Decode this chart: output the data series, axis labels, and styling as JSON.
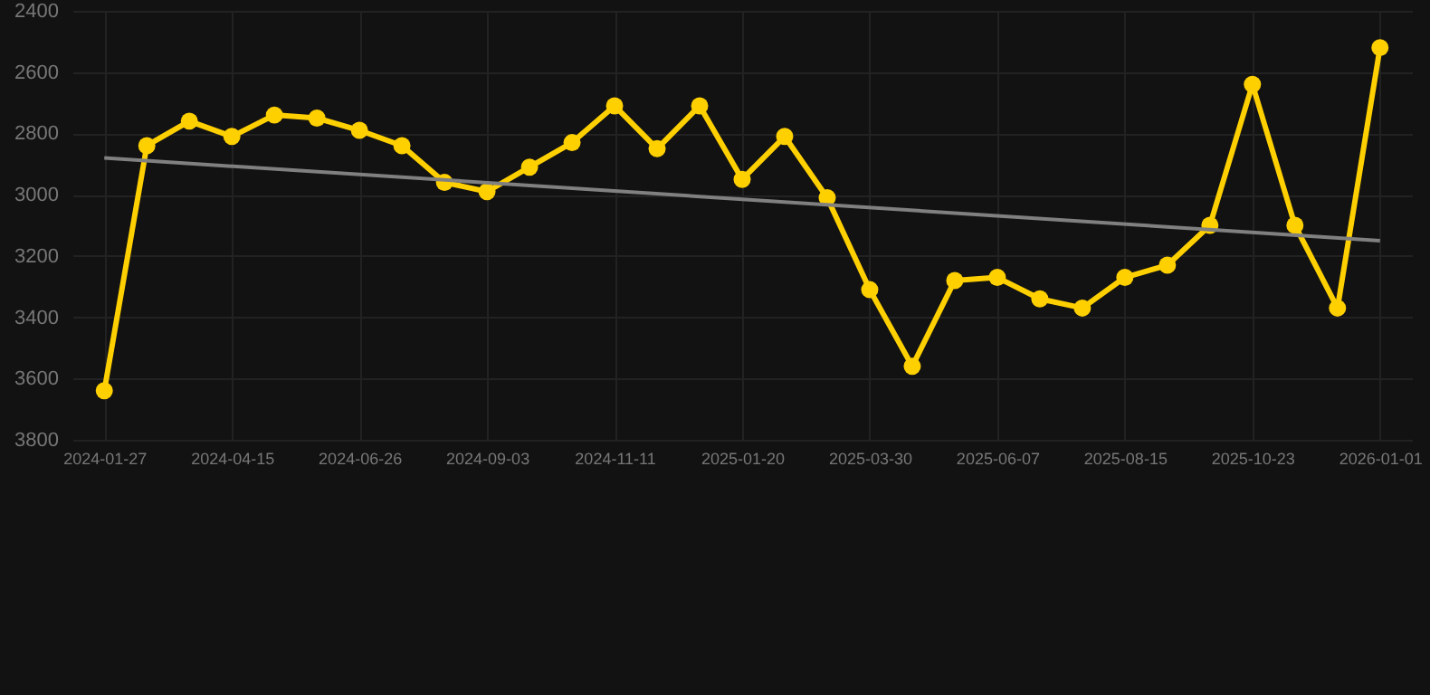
{
  "chart_data": {
    "type": "line",
    "categories": [
      "2024-01-27",
      null,
      null,
      "2024-04-15",
      null,
      null,
      "2024-06-26",
      null,
      null,
      "2024-09-03",
      null,
      null,
      "2024-11-11",
      null,
      null,
      "2025-01-20",
      null,
      null,
      "2025-03-30",
      null,
      null,
      "2025-06-07",
      null,
      null,
      "2025-08-15",
      null,
      null,
      "2025-10-23",
      null,
      null,
      "2026-01-01"
    ],
    "ylim": [
      3800,
      2400
    ],
    "yticks": [
      2400,
      2600,
      2800,
      3000,
      3200,
      3400,
      3600,
      3800
    ],
    "grid": true,
    "marker": "circle",
    "line_style": "solid",
    "series": [
      {
        "color": "#ffd000",
        "values": [
          3640,
          2840,
          2760,
          2810,
          2740,
          2750,
          2790,
          2840,
          2960,
          2990,
          2910,
          2830,
          2710,
          2850,
          2710,
          2950,
          2810,
          3010,
          3310,
          3560,
          3280,
          3270,
          3340,
          3370,
          3270,
          3230,
          3100,
          2640,
          3100,
          3370,
          2520
        ]
      },
      {
        "type": "line",
        "color": "#808080",
        "marker": "none",
        "values": [
          2880,
          null,
          null,
          null,
          null,
          null,
          null,
          null,
          null,
          null,
          null,
          null,
          null,
          null,
          null,
          null,
          null,
          null,
          null,
          null,
          null,
          null,
          null,
          null,
          null,
          null,
          null,
          null,
          null,
          null,
          3150
        ]
      }
    ]
  }
}
